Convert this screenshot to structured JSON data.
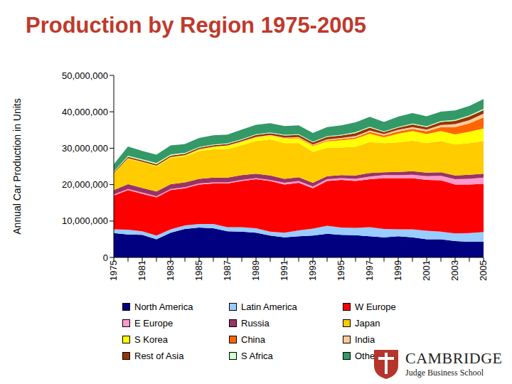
{
  "chart_data": {
    "type": "area",
    "title": "Production by Region 1975-2005",
    "y_label": "Annual Car Production in Units",
    "stacked": true,
    "grid": false,
    "legend": "bottom",
    "annotations": [
      "CAMBRIDGE",
      "Judge Business School"
    ],
    "categories": [
      "1975",
      null,
      "1981",
      null,
      "1983",
      null,
      "1985",
      null,
      "1987",
      null,
      "1989",
      null,
      "1991",
      null,
      "1993",
      null,
      "1995",
      null,
      "1997",
      null,
      "1999",
      null,
      "2001",
      null,
      "2003",
      null,
      "2005"
    ],
    "ylim": [
      0,
      50000000
    ],
    "yticks": [
      0,
      {
        "value": 10000000,
        "label": "10,000,000"
      },
      {
        "value": 20000000,
        "label": "20,000,000"
      },
      {
        "value": 30000000,
        "label": "30,000,000"
      },
      {
        "value": 40000000,
        "label": "40,000,000"
      },
      {
        "value": 50000000,
        "label": "50,000,000"
      }
    ],
    "series": [
      {
        "name": "North America",
        "color": "#000080",
        "values": [
          6700000,
          6300000,
          6200000,
          5000000,
          6800000,
          7800000,
          8200000,
          8000000,
          7200000,
          7100000,
          6800000,
          6000000,
          5500000,
          5800000,
          6000000,
          6500000,
          6200000,
          6100000,
          5800000,
          5500000,
          5800000,
          5500000,
          5000000,
          5000000,
          4500000,
          4300000,
          4300000
        ]
      },
      {
        "name": "Latin America",
        "color": "#99ccff",
        "values": [
          1000000,
          1300000,
          1000000,
          1000000,
          900000,
          1000000,
          1000000,
          1200000,
          1100000,
          1200000,
          1200000,
          1100000,
          1300000,
          1600000,
          1900000,
          2200000,
          2000000,
          2000000,
          2500000,
          2300000,
          1900000,
          2200000,
          2300000,
          2100000,
          2100000,
          2400000,
          2700000
        ]
      },
      {
        "name": "W Europe",
        "color": "#ff0000",
        "values": [
          9300000,
          10900000,
          10300000,
          10500000,
          10800000,
          10200000,
          10800000,
          11100000,
          12000000,
          12700000,
          13500000,
          13900000,
          13200000,
          13100000,
          11100000,
          12300000,
          13100000,
          12900000,
          13200000,
          14000000,
          14100000,
          14100000,
          14000000,
          14100000,
          13400000,
          13300000,
          13200000
        ]
      },
      {
        "name": "E Europe",
        "color": "#ff99cc",
        "values": [
          300000,
          300000,
          300000,
          300000,
          300000,
          300000,
          300000,
          300000,
          300000,
          300000,
          300000,
          300000,
          500000,
          500000,
          500000,
          500000,
          500000,
          600000,
          700000,
          800000,
          800000,
          900000,
          1000000,
          1200000,
          1500000,
          1600000,
          1700000
        ]
      },
      {
        "name": "Russia",
        "color": "#993366",
        "values": [
          1200000,
          1300000,
          1300000,
          1300000,
          1300000,
          1300000,
          1300000,
          1300000,
          1300000,
          1300000,
          1200000,
          1200000,
          1100000,
          1000000,
          1000000,
          800000,
          800000,
          900000,
          1000000,
          800000,
          900000,
          1000000,
          1000000,
          1000000,
          1000000,
          1100000,
          1100000
        ]
      },
      {
        "name": "Japan",
        "color": "#ffcc00",
        "values": [
          4500000,
          7000000,
          7000000,
          6900000,
          7200000,
          7100000,
          7600000,
          7800000,
          7900000,
          8200000,
          9000000,
          9900000,
          9800000,
          9400000,
          8500000,
          7800000,
          7600000,
          7900000,
          8500000,
          8000000,
          8100000,
          8400000,
          8100000,
          8600000,
          8500000,
          8700000,
          9000000
        ]
      },
      {
        "name": "S Korea",
        "color": "#ffff00",
        "values": [
          40000,
          100000,
          100000,
          150000,
          200000,
          300000,
          400000,
          600000,
          800000,
          900000,
          900000,
          1000000,
          1200000,
          1300000,
          1600000,
          1800000,
          2000000,
          2200000,
          2300000,
          1600000,
          2400000,
          2600000,
          2500000,
          2700000,
          2800000,
          3100000,
          3400000
        ]
      },
      {
        "name": "China",
        "color": "#ff6600",
        "values": [
          10000,
          20000,
          20000,
          20000,
          20000,
          20000,
          30000,
          30000,
          30000,
          40000,
          40000,
          50000,
          100000,
          200000,
          200000,
          250000,
          300000,
          350000,
          450000,
          500000,
          550000,
          600000,
          700000,
          1100000,
          2000000,
          2300000,
          3100000
        ]
      },
      {
        "name": "India",
        "color": "#ffcc99",
        "values": [
          30000,
          30000,
          40000,
          40000,
          50000,
          60000,
          100000,
          100000,
          120000,
          150000,
          180000,
          200000,
          200000,
          160000,
          200000,
          250000,
          300000,
          400000,
          400000,
          400000,
          500000,
          500000,
          500000,
          600000,
          800000,
          900000,
          1000000
        ]
      },
      {
        "name": "Rest of Asia",
        "color": "#993300",
        "values": [
          300000,
          400000,
          400000,
          400000,
          400000,
          400000,
          400000,
          400000,
          400000,
          400000,
          500000,
          500000,
          600000,
          600000,
          600000,
          700000,
          700000,
          800000,
          800000,
          500000,
          600000,
          700000,
          700000,
          800000,
          900000,
          1000000,
          1000000
        ]
      },
      {
        "name": "S Africa",
        "color": "#ccffcc",
        "values": [
          200000,
          300000,
          300000,
          300000,
          300000,
          250000,
          200000,
          200000,
          200000,
          200000,
          200000,
          200000,
          200000,
          200000,
          200000,
          200000,
          200000,
          250000,
          250000,
          200000,
          200000,
          250000,
          250000,
          250000,
          300000,
          300000,
          300000
        ]
      },
      {
        "name": "Other",
        "color": "#339966",
        "values": [
          2000000,
          2500000,
          2300000,
          2300000,
          2500000,
          2400000,
          2500000,
          2500000,
          2400000,
          2600000,
          2600000,
          2500000,
          2400000,
          2400000,
          2400000,
          2500000,
          2600000,
          2700000,
          2700000,
          2600000,
          2800000,
          2900000,
          2700000,
          2600000,
          2600000,
          2600000,
          2700000
        ]
      }
    ]
  }
}
